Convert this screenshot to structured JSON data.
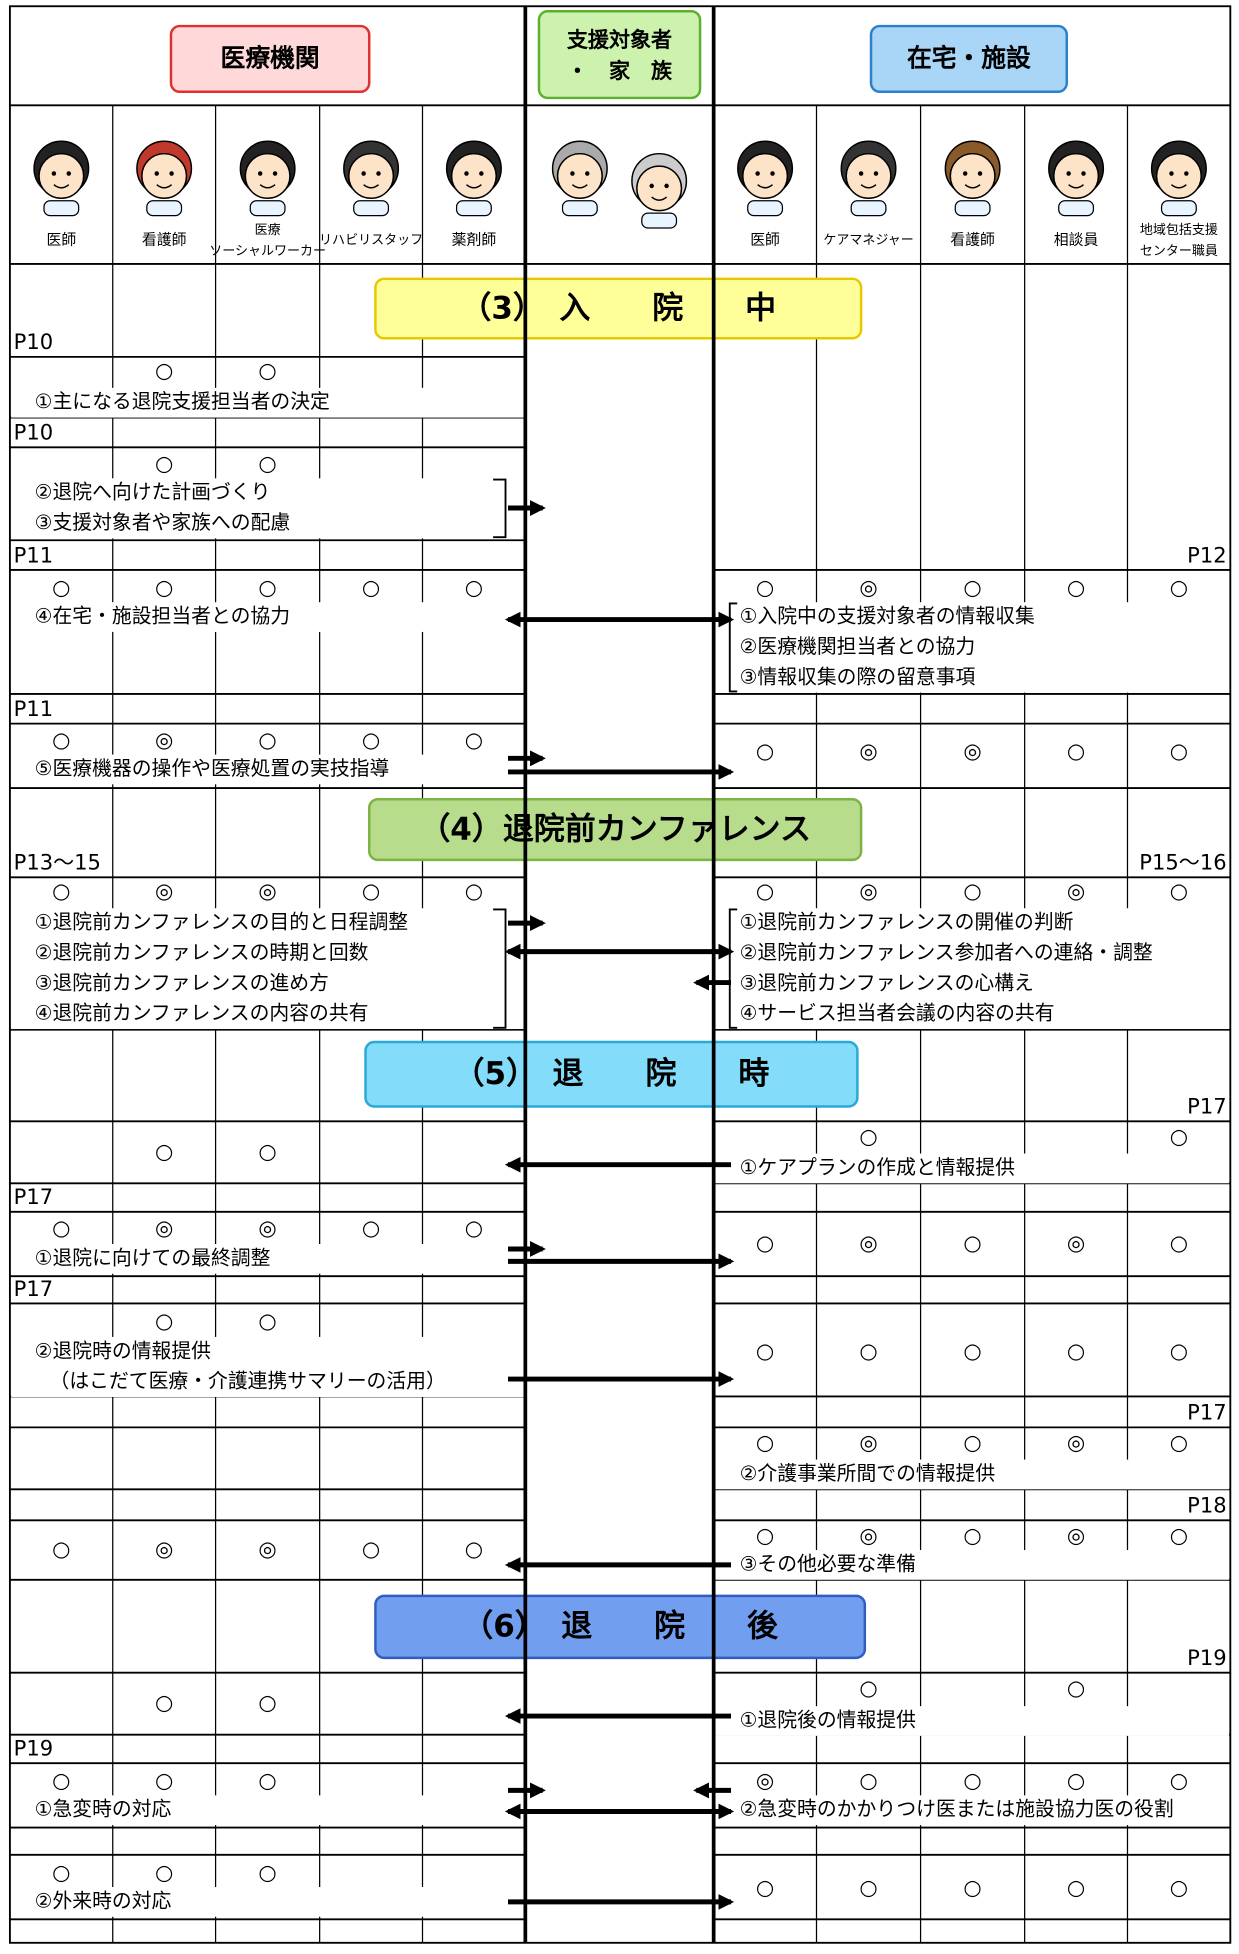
{
  "header": {
    "medical": "医療機関",
    "patient": [
      "支援対象者",
      "・　家　族"
    ],
    "home": "在宅・施設"
  },
  "roles": {
    "medical": [
      [
        "医師"
      ],
      [
        "看護師"
      ],
      [
        "医療",
        "ソーシャルワーカー"
      ],
      [
        "リハビリスタッフ"
      ],
      [
        "薬剤師"
      ]
    ],
    "home": [
      [
        "医師"
      ],
      [
        "ケアマネジャー"
      ],
      [
        "看護師"
      ],
      [
        "相談員"
      ],
      [
        "地域包括支援",
        "センター職員"
      ]
    ]
  },
  "sections": [
    {
      "title": "（3）　入　　院　　中",
      "blocks": [
        {
          "left_page": "P10",
          "left_marks": [
            null,
            "○",
            "○",
            null,
            null
          ],
          "left_items": [
            "①主になる退院支援担当者の決定"
          ]
        },
        {
          "left_page": "P10",
          "left_marks": [
            null,
            "○",
            "○",
            null,
            null
          ],
          "left_items": [
            "②退院へ向けた計画づくり",
            "③支援対象者や家族への配慮"
          ]
        },
        {
          "left_page": "P11",
          "right_page": "P12",
          "left_marks": [
            "○",
            "○",
            "○",
            "○",
            "○"
          ],
          "right_marks": [
            "○",
            "◎",
            "○",
            "○",
            "○"
          ],
          "left_items": [
            "④在宅・施設担当者との協力"
          ],
          "right_items": [
            "①入院中の支援対象者の情報収集",
            "②医療機関担当者との協力",
            "③情報収集の際の留意事項"
          ]
        },
        {
          "left_page": "P11",
          "left_marks": [
            "○",
            "◎",
            "○",
            "○",
            "○"
          ],
          "right_marks": [
            "○",
            "◎",
            "◎",
            "○",
            "○"
          ],
          "left_items": [
            "⑤医療機器の操作や医療処置の実技指導"
          ]
        }
      ]
    },
    {
      "title": "（4）退院前カンファレンス",
      "blocks": [
        {
          "left_page": "P13～15",
          "right_page": "P15～16",
          "left_marks": [
            "○",
            "◎",
            "◎",
            "○",
            "○"
          ],
          "right_marks": [
            "○",
            "◎",
            "○",
            "◎",
            "○"
          ],
          "left_items": [
            "①退院前カンファレンスの目的と日程調整",
            "②退院前カンファレンスの時期と回数",
            "③退院前カンファレンスの進め方",
            "④退院前カンファレンスの内容の共有"
          ],
          "right_items": [
            "①退院前カンファレンスの開催の判断",
            "②退院前カンファレンス参加者への連絡・調整",
            "③退院前カンファレンスの心構え",
            "④サービス担当者会議の内容の共有"
          ]
        }
      ]
    },
    {
      "title": "（5）　退　　院　　時",
      "blocks": [
        {
          "right_page": "P17",
          "left_marks": [
            null,
            "○",
            "○",
            null,
            null
          ],
          "right_marks": [
            null,
            "○",
            null,
            null,
            "○"
          ],
          "right_items": [
            "①ケアプランの作成と情報提供"
          ]
        },
        {
          "left_page": "P17",
          "left_marks": [
            "○",
            "◎",
            "◎",
            "○",
            "○"
          ],
          "right_marks": [
            "○",
            "◎",
            "○",
            "◎",
            "○"
          ],
          "left_items": [
            "①退院に向けての最終調整"
          ]
        },
        {
          "left_page": "P17",
          "left_marks": [
            null,
            "○",
            "○",
            null,
            null
          ],
          "right_marks": [
            "○",
            "○",
            "○",
            "○",
            "○"
          ],
          "left_items": [
            "②退院時の情報提供",
            "（はこだて医療・介護連携サマリーの活用）"
          ]
        },
        {
          "right_page": "P17",
          "right_marks": [
            "○",
            "◎",
            "○",
            "◎",
            "○"
          ],
          "right_items": [
            "②介護事業所間での情報提供"
          ]
        },
        {
          "right_page": "P18",
          "left_marks": [
            "○",
            "◎",
            "◎",
            "○",
            "○"
          ],
          "right_marks": [
            "○",
            "◎",
            "○",
            "◎",
            "○"
          ],
          "right_items": [
            "③その他必要な準備"
          ]
        }
      ]
    },
    {
      "title": "（6）　退　　院　　後",
      "blocks": [
        {
          "right_page": "P19",
          "left_marks": [
            null,
            "○",
            "○",
            null,
            null
          ],
          "right_marks": [
            null,
            "○",
            null,
            "○",
            null
          ],
          "right_items": [
            "①退院後の情報提供"
          ]
        },
        {
          "left_page": "P19",
          "left_marks": [
            "○",
            "○",
            "○",
            null,
            null
          ],
          "right_marks": [
            "◎",
            "○",
            "○",
            "○",
            "○"
          ],
          "left_items": [
            "①急変時の対応"
          ],
          "right_items": [
            "②急変時のかかりつけ医または施設協力医の役割"
          ]
        },
        {
          "left_marks": [
            "○",
            "○",
            "○",
            null,
            null
          ],
          "right_marks": [
            "○",
            "○",
            "○",
            "○",
            "○"
          ],
          "left_items": [
            "②外来時の対応"
          ]
        }
      ]
    }
  ]
}
